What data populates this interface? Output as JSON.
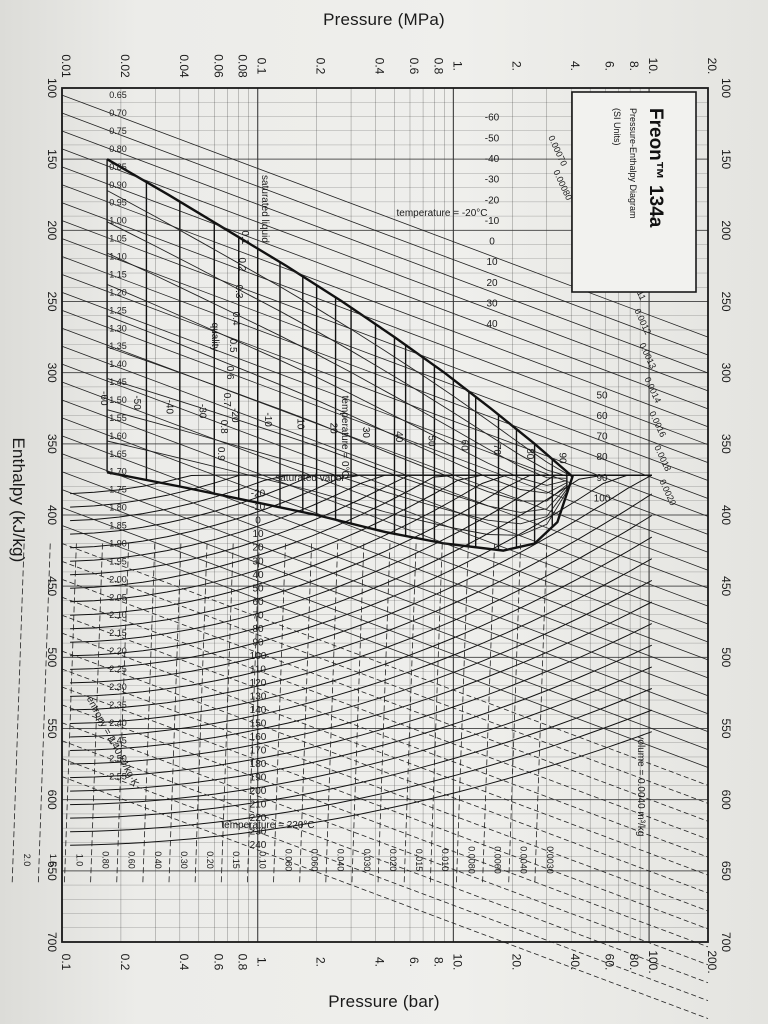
{
  "chart_data": {
    "type": "line",
    "title": "Freon™ 134a",
    "subtitle": "Pressure-Enthalpy Diagram",
    "units_note": "(SI Units)",
    "top_axis_label": "Pressure (MPa)",
    "bottom_axis_label": "Pressure (bar)",
    "left_axis_label": "Enthalpy (kJ/kg)",
    "enthalpy_ticks": [
      "100",
      "150",
      "200",
      "250",
      "300",
      "350",
      "400",
      "450",
      "500",
      "550",
      "600",
      "650",
      "700"
    ],
    "mpa_ticks": [
      "0.01",
      "0.02",
      "0.04",
      "0.06",
      "0.08",
      "0.1",
      "0.2",
      "0.4",
      "0.6",
      "0.8",
      "1.",
      "2.",
      "4.",
      "6.",
      "8.",
      "10.",
      "20."
    ],
    "bar_ticks": [
      "0.1",
      "0.2",
      "0.4",
      "0.6",
      "0.8",
      "1.",
      "2.",
      "4.",
      "6.",
      "8.",
      "10.",
      "20.",
      "40.",
      "60.",
      "80.",
      "100.",
      "200."
    ],
    "xlim": [
      100,
      700
    ],
    "ylim_mpa": [
      0.01,
      20
    ],
    "scale": "log pressure",
    "dome": {
      "saturated_liquid_label": "saturated liquid",
      "saturated_vapor_label": "saturated vapor",
      "saturated_liquid": [
        [
          150,
          0.017
        ],
        [
          175,
          0.035
        ],
        [
          200,
          0.07
        ],
        [
          225,
          0.14
        ],
        [
          250,
          0.27
        ],
        [
          275,
          0.5
        ],
        [
          300,
          0.9
        ],
        [
          325,
          1.55
        ],
        [
          350,
          2.6
        ],
        [
          373,
          4.06
        ]
      ],
      "saturated_vapor": [
        [
          373,
          4.06
        ],
        [
          405,
          3.4
        ],
        [
          420,
          2.6
        ],
        [
          425,
          1.8
        ],
        [
          420,
          0.9
        ],
        [
          412,
          0.45
        ],
        [
          400,
          0.2
        ],
        [
          390,
          0.09
        ],
        [
          380,
          0.04
        ],
        [
          370,
          0.017
        ]
      ]
    },
    "quality_label": "quality",
    "quality_lines": [
      "0.1",
      "0.2",
      "0.3",
      "0.4",
      "0.5",
      "0.6",
      "0.7",
      "0.8",
      "0.9"
    ],
    "temperature_label": "temperature",
    "temperature_label_2": "temperature = 0°C",
    "temperature_label_3": "temperature = 220°C",
    "temperature_label_4": "temperature = -20°C",
    "saturation_temperatures_C": [
      "-60",
      "-50",
      "-40",
      "-30",
      "-20",
      "-10",
      "0",
      "10",
      "20",
      "30",
      "40",
      "50",
      "60",
      "70",
      "80",
      "90",
      "100"
    ],
    "dome_temperatures_C": [
      "-60",
      "-50",
      "-40",
      "-30",
      "-20",
      "-10",
      "10",
      "20",
      "30",
      "40",
      "50",
      "60",
      "70",
      "80",
      "90"
    ],
    "superheat_temperatures_C": [
      "-20",
      "-10",
      "0",
      "10",
      "20",
      "30",
      "40",
      "50",
      "60",
      "70",
      "80",
      "90",
      "100",
      "110",
      "120",
      "130",
      "140",
      "150",
      "160",
      "170",
      "180",
      "190",
      "200",
      "210",
      "220",
      "230",
      "240"
    ],
    "entropy_label": "entropy = 2.40 kJ/kg·K",
    "entropy_values": [
      "0.65",
      "0.70",
      "0.75",
      "0.80",
      "0.85",
      "0.90",
      "0.95",
      "1.00",
      "1.05",
      "1.10",
      "1.15",
      "1.20",
      "1.25",
      "1.30",
      "1.35",
      "1.40",
      "1.45",
      "1.50",
      "1.55",
      "1.60",
      "1.65",
      "1.70",
      "1.75",
      "1.80",
      "1.85",
      "1.90",
      "1.95",
      "2.00",
      "2.05",
      "2.10",
      "2.15",
      "2.20",
      "2.25",
      "2.30",
      "2.35",
      "2.40",
      "2.45",
      "2.50",
      "2.55"
    ],
    "volume_label": "volume = 0.0040 m³/kg",
    "volume_values": [
      "0.00070",
      "0.00080",
      "0.00090",
      "0.0010",
      "0.0011",
      "0.0012",
      "0.0013",
      "0.0014",
      "0.0016",
      "0.0018",
      "0.0020",
      "0.0030",
      "0.0040",
      "0.0060",
      "0.0080",
      "0.010",
      "0.015",
      "0.020",
      "0.030",
      "0.040",
      "0.060",
      "0.080",
      "0.10",
      "0.15",
      "0.20",
      "0.30",
      "0.40",
      "0.60",
      "0.80",
      "1.0",
      "1.5",
      "2.0"
    ]
  },
  "colors": {
    "paper": "#ececE9",
    "ink": "#1a1a1a",
    "grid": "#2a2a2a"
  }
}
